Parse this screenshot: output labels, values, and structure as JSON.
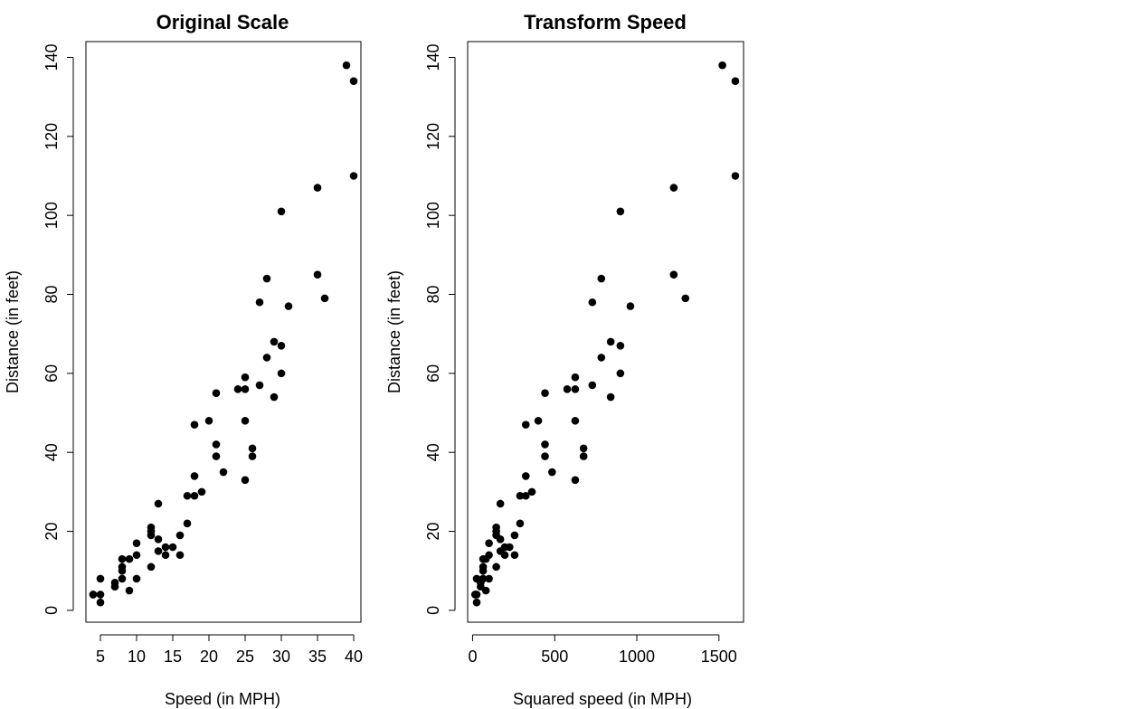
{
  "chart_data": [
    {
      "type": "scatter",
      "title": "Original Scale",
      "xlabel": "Speed (in MPH)",
      "ylabel": "Distance (in feet)",
      "xlim": [
        3,
        41
      ],
      "ylim": [
        -3,
        144
      ],
      "xticks": [
        5,
        10,
        15,
        20,
        25,
        30,
        35,
        40
      ],
      "yticks": [
        0,
        20,
        40,
        60,
        80,
        100,
        120,
        140
      ],
      "grid": false,
      "marker_color": "#000000",
      "x": [
        4,
        4,
        5,
        5,
        5,
        7,
        7,
        8,
        8,
        8,
        8,
        9,
        9,
        10,
        10,
        10,
        12,
        12,
        12,
        12,
        13,
        13,
        13,
        14,
        14,
        15,
        16,
        16,
        17,
        17,
        18,
        18,
        18,
        19,
        20,
        21,
        21,
        21,
        22,
        24,
        25,
        25,
        25,
        25,
        26,
        26,
        27,
        27,
        28,
        28,
        29,
        29,
        30,
        30,
        30,
        31,
        35,
        35,
        36,
        39,
        40,
        40
      ],
      "y": [
        4,
        4,
        2,
        4,
        8,
        6,
        7,
        8,
        10,
        11,
        13,
        5,
        13,
        8,
        14,
        17,
        11,
        19,
        20,
        21,
        15,
        18,
        27,
        14,
        16,
        16,
        14,
        19,
        22,
        29,
        29,
        34,
        47,
        30,
        48,
        39,
        42,
        55,
        35,
        56,
        33,
        48,
        56,
        59,
        39,
        41,
        57,
        78,
        64,
        84,
        54,
        68,
        60,
        67,
        101,
        77,
        85,
        107,
        79,
        138,
        110,
        134
      ]
    },
    {
      "type": "scatter",
      "title": "Transform Speed",
      "xlabel": "Squared speed (in MPH)",
      "ylabel": "Distance (in feet)",
      "xlim": [
        -30,
        1650
      ],
      "ylim": [
        -3,
        144
      ],
      "xticks": [
        0,
        500,
        1000,
        1500
      ],
      "yticks": [
        0,
        20,
        40,
        60,
        80,
        100,
        120,
        140
      ],
      "grid": false,
      "marker_color": "#000000",
      "x": [
        16,
        16,
        25,
        25,
        25,
        49,
        49,
        64,
        64,
        64,
        64,
        81,
        81,
        100,
        100,
        100,
        144,
        144,
        144,
        144,
        169,
        169,
        169,
        196,
        196,
        225,
        256,
        256,
        289,
        289,
        324,
        324,
        324,
        361,
        400,
        441,
        441,
        441,
        484,
        576,
        625,
        625,
        625,
        625,
        676,
        676,
        729,
        729,
        784,
        784,
        841,
        841,
        900,
        900,
        900,
        961,
        1225,
        1225,
        1296,
        1521,
        1600,
        1600
      ],
      "y": [
        4,
        4,
        2,
        4,
        8,
        6,
        7,
        8,
        10,
        11,
        13,
        5,
        13,
        8,
        14,
        17,
        11,
        19,
        20,
        21,
        15,
        18,
        27,
        14,
        16,
        16,
        14,
        19,
        22,
        29,
        29,
        34,
        47,
        30,
        48,
        39,
        42,
        55,
        35,
        56,
        33,
        48,
        56,
        59,
        39,
        41,
        57,
        78,
        64,
        84,
        54,
        68,
        60,
        67,
        101,
        77,
        85,
        107,
        79,
        138,
        110,
        134
      ]
    }
  ]
}
